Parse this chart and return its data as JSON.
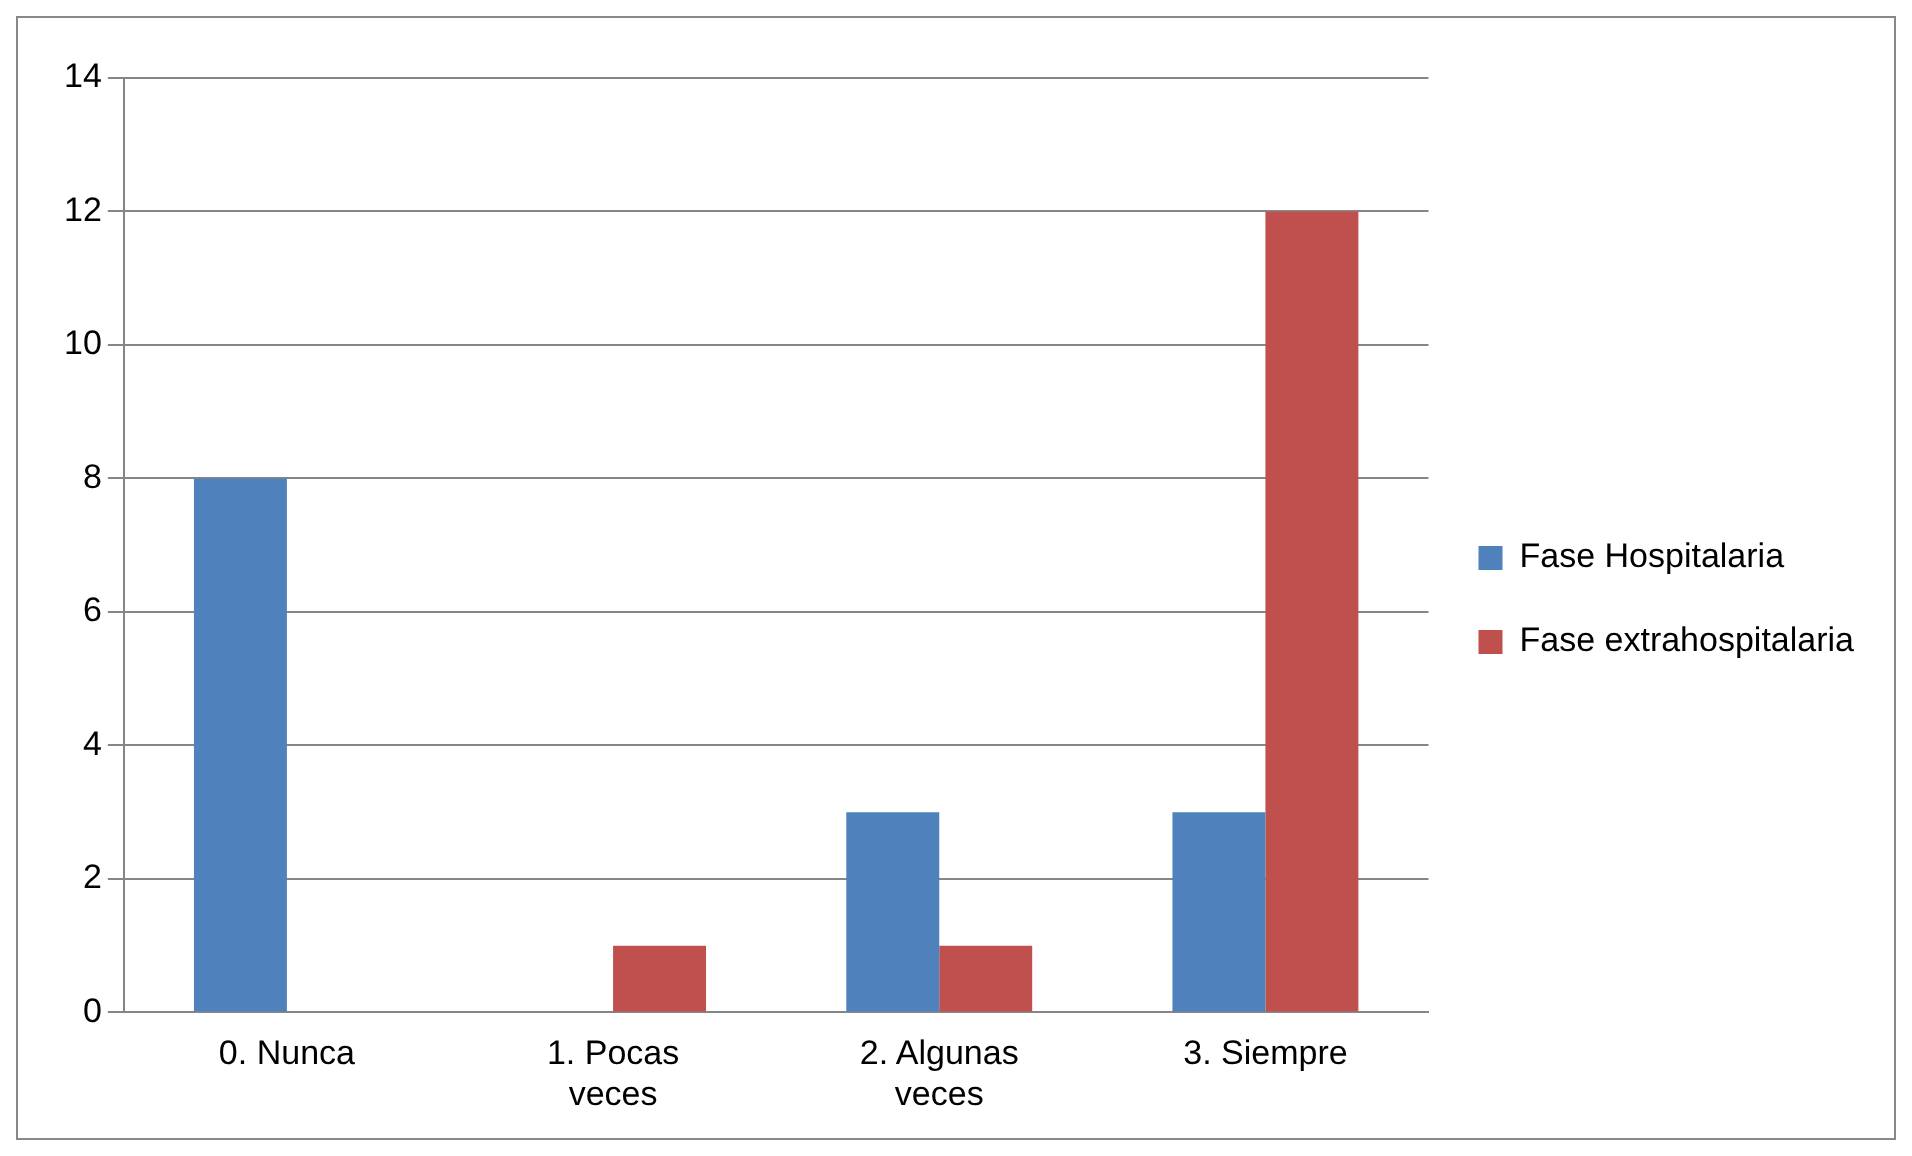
{
  "chart_data": {
    "type": "bar",
    "categories": [
      "0. Nunca",
      "1. Pocas veces",
      "2. Algunas veces",
      "3. Siempre"
    ],
    "series": [
      {
        "name": "Fase Hospitalaria",
        "color": "#4f81bd",
        "values": [
          8,
          0,
          3,
          3
        ]
      },
      {
        "name": "Fase extrahospitalaria",
        "color": "#c0504d",
        "values": [
          0,
          1,
          1,
          12
        ]
      }
    ],
    "ylim": [
      0,
      14
    ],
    "yticks": [
      0,
      2,
      4,
      6,
      8,
      10,
      12,
      14
    ],
    "grid": "y",
    "legend": "right"
  }
}
